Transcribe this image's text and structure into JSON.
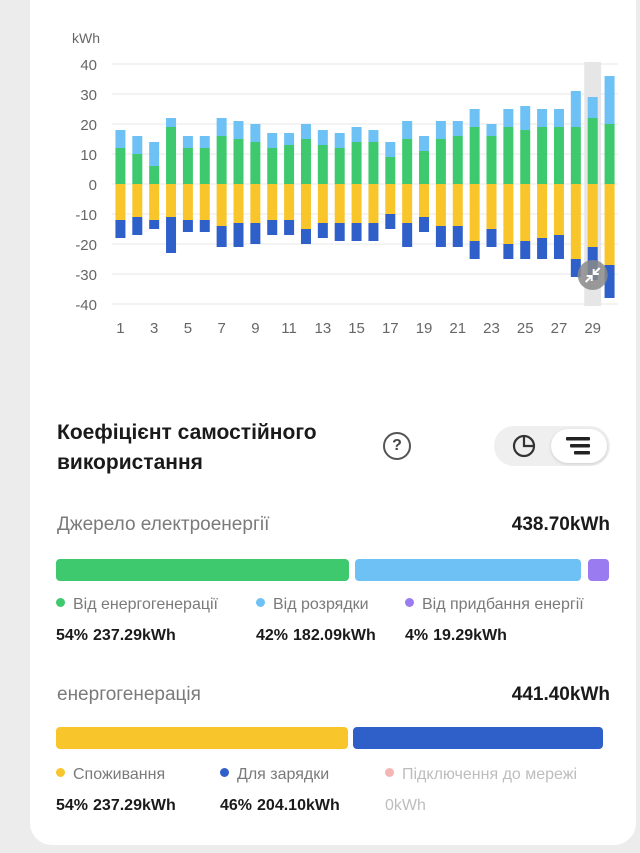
{
  "chart_data": {
    "type": "bar",
    "stacked": true,
    "ylabel": "kWh",
    "ylim": [
      -40,
      40
    ],
    "yticks": [
      40,
      30,
      20,
      10,
      0,
      -10,
      -20,
      -30,
      -40
    ],
    "x": [
      1,
      2,
      3,
      4,
      5,
      6,
      7,
      8,
      9,
      10,
      11,
      12,
      13,
      14,
      15,
      16,
      17,
      18,
      19,
      20,
      21,
      22,
      23,
      24,
      25,
      26,
      27,
      28,
      29,
      30
    ],
    "xtick_labels": [
      "1",
      "3",
      "5",
      "7",
      "9",
      "11",
      "13",
      "15",
      "17",
      "19",
      "21",
      "23",
      "25",
      "27",
      "29"
    ],
    "highlighted_x": 29,
    "grid": true,
    "series": [
      {
        "color": "#3ec96e",
        "values": [
          12,
          10,
          6,
          19,
          12,
          12,
          16,
          15,
          14,
          12,
          13,
          15,
          13,
          12,
          14,
          14,
          9,
          15,
          11,
          15,
          16,
          19,
          16,
          19,
          18,
          19,
          19,
          19,
          22,
          20
        ]
      },
      {
        "color": "#6ec1f5",
        "values": [
          6,
          6,
          8,
          3,
          4,
          4,
          6,
          6,
          6,
          5,
          4,
          5,
          5,
          5,
          5,
          4,
          5,
          6,
          5,
          6,
          5,
          6,
          4,
          6,
          8,
          6,
          6,
          12,
          7,
          16
        ]
      },
      {
        "color": "#f8c62a",
        "values": [
          -12,
          -11,
          -12,
          -11,
          -12,
          -12,
          -14,
          -13,
          -13,
          -12,
          -12,
          -15,
          -13,
          -13,
          -13,
          -13,
          -10,
          -13,
          -11,
          -14,
          -14,
          -19,
          -15,
          -20,
          -19,
          -18,
          -17,
          -25,
          -21,
          -27
        ]
      },
      {
        "color": "#2f5fc9",
        "values": [
          -6,
          -6,
          -3,
          -12,
          -4,
          -4,
          -7,
          -8,
          -7,
          -5,
          -5,
          -5,
          -5,
          -6,
          -6,
          -6,
          -5,
          -8,
          -5,
          -7,
          -7,
          -6,
          -6,
          -5,
          -6,
          -7,
          -8,
          -6,
          -11,
          -11
        ]
      }
    ]
  },
  "zoom_icon": "collapse-arrows-icon",
  "section": {
    "title": "Коефіцієнт самостійного використання",
    "help_icon": "question-icon",
    "help_glyph": "?",
    "toggle_options": [
      "pie-chart-icon",
      "list-icon"
    ]
  },
  "source": {
    "label": "Джерело електроенергії",
    "total": "438.70kWh",
    "segments": [
      {
        "name": "Від енергогенерації",
        "pct": "54%",
        "value": "237.29kWh",
        "fraction": 0.54,
        "color": "#3ec96e"
      },
      {
        "name": "Від розрядки",
        "pct": "42%",
        "value": "182.09kWh",
        "fraction": 0.42,
        "color": "#6ec1f5"
      },
      {
        "name": "Від придбання енергії",
        "pct": "4%",
        "value": "19.29kWh",
        "fraction": 0.04,
        "color": "#9b7bf0"
      }
    ]
  },
  "generation": {
    "label": "енергогенерація",
    "total": "441.40kWh",
    "segments": [
      {
        "name": "Споживання",
        "pct": "54%",
        "value": "237.29kWh",
        "fraction": 0.54,
        "color": "#f8c62a"
      },
      {
        "name": "Для зарядки",
        "pct": "46%",
        "value": "204.10kWh",
        "fraction": 0.46,
        "color": "#2f5fc9"
      },
      {
        "name": "Підключення до мережі",
        "pct": "",
        "value": "0kWh",
        "fraction": 0,
        "color": "#f5b5b5"
      }
    ]
  }
}
